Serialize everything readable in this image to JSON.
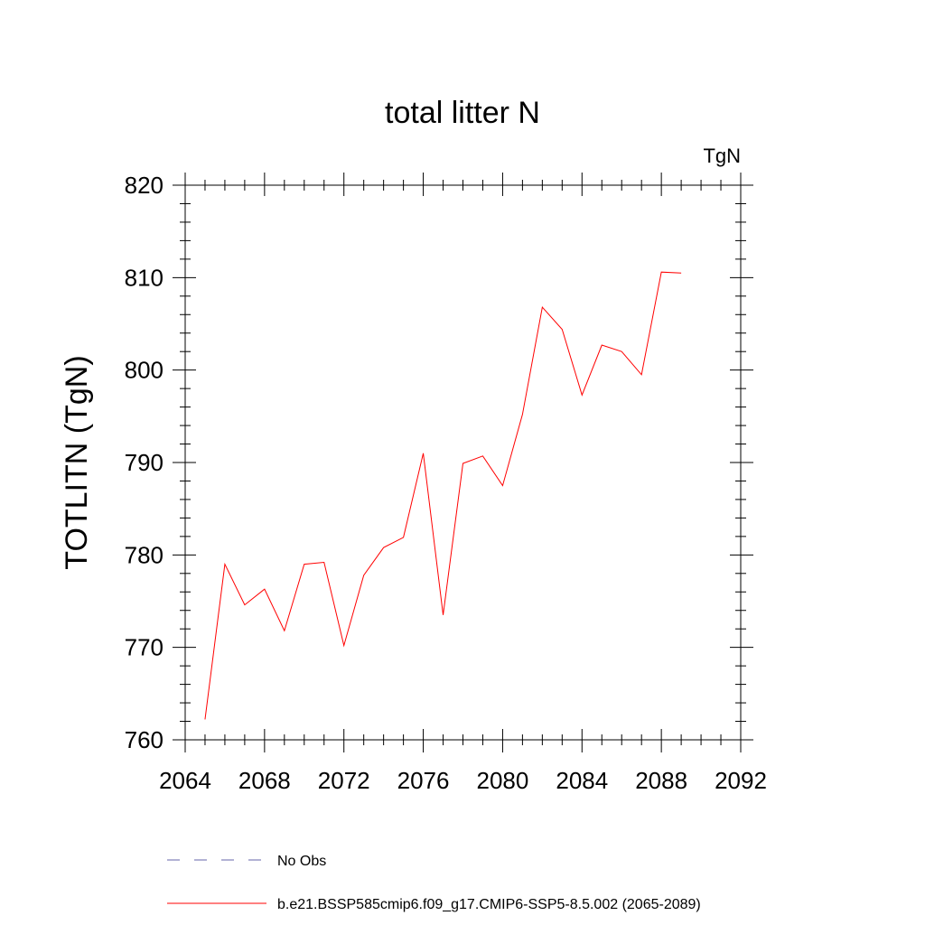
{
  "chart_data": {
    "type": "line",
    "title": "total litter N",
    "units": "TgN",
    "ylabel": "TOTLITN  (TgN)",
    "xlim": [
      2064,
      2092
    ],
    "ylim": [
      760,
      820
    ],
    "xticks": [
      2064,
      2068,
      2072,
      2076,
      2080,
      2084,
      2088,
      2092
    ],
    "yticks": [
      760,
      770,
      780,
      790,
      800,
      810,
      820
    ],
    "series": [
      {
        "name": "b.e21.BSSP585cmip6.f09_g17.CMIP6-SSP5-8.5.002 (2065-2089)",
        "color": "#ff0000",
        "x": [
          2065,
          2066,
          2067,
          2068,
          2069,
          2070,
          2071,
          2072,
          2073,
          2074,
          2075,
          2076,
          2077,
          2078,
          2079,
          2080,
          2081,
          2082,
          2083,
          2084,
          2085,
          2086,
          2087,
          2088,
          2089
        ],
        "y": [
          762.2,
          779.0,
          774.6,
          776.3,
          771.8,
          779.0,
          779.2,
          770.2,
          777.8,
          780.8,
          781.9,
          791.0,
          773.5,
          789.9,
          790.7,
          787.5,
          795.2,
          806.8,
          804.4,
          797.3,
          802.7,
          802.0,
          799.5,
          810.6,
          810.5
        ]
      }
    ],
    "legend": [
      {
        "label": "No Obs",
        "color": "#6666aa",
        "style": "dashed"
      },
      {
        "label": "b.e21.BSSP585cmip6.f09_g17.CMIP6-SSP5-8.5.002 (2065-2089)",
        "color": "#ff0000",
        "style": "solid"
      }
    ]
  }
}
